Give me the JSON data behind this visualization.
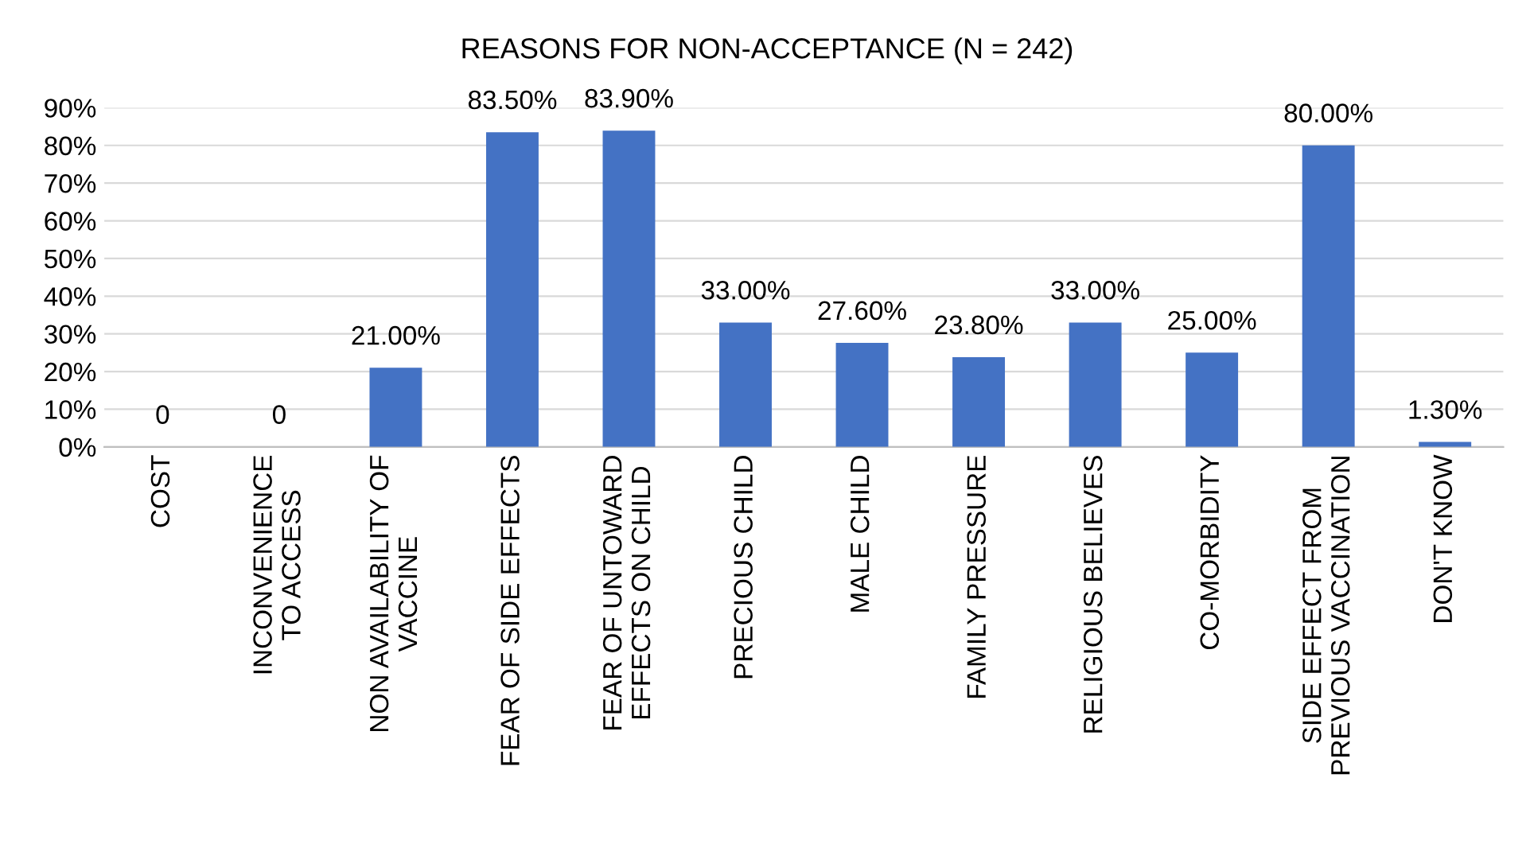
{
  "chart_data": {
    "type": "bar",
    "title": "REASONS FOR NON-ACCEPTANCE (N = 242)",
    "categories": [
      "COST",
      "INCONVENIENCE\nTO ACCESS",
      "NON AVAILABILITY OF\nVACCINE",
      "FEAR OF SIDE EFFECTS",
      "FEAR OF UNTOWARD\nEFFECTS ON CHILD",
      "PRECIOUS CHILD",
      "MALE CHILD",
      "FAMILY PRESSURE",
      "RELIGIOUS BELIEVES",
      "CO-MORBIDITY",
      "SIDE EFFECT FROM\nPREVIOUS VACCINATION",
      "DON'T KNOW"
    ],
    "values": [
      0,
      0,
      21.0,
      83.5,
      83.9,
      33.0,
      27.6,
      23.8,
      33.0,
      25.0,
      80.0,
      1.3
    ],
    "value_labels": [
      "0",
      "0",
      "21.00%",
      "83.50%",
      "83.90%",
      "33.00%",
      "27.60%",
      "23.80%",
      "33.00%",
      "25.00%",
      "80.00%",
      "1.30%"
    ],
    "color": "#4472c4",
    "ylim": [
      0,
      90
    ],
    "yticks": [
      {
        "value": 0,
        "label": "0%"
      },
      {
        "value": 10,
        "label": "10%"
      },
      {
        "value": 20,
        "label": "20%"
      },
      {
        "value": 30,
        "label": "30%"
      },
      {
        "value": 40,
        "label": "40%"
      },
      {
        "value": 50,
        "label": "50%"
      },
      {
        "value": 60,
        "label": "60%"
      },
      {
        "value": 70,
        "label": "70%"
      },
      {
        "value": 80,
        "label": "80%"
      },
      {
        "value": 90,
        "label": "90%"
      }
    ],
    "grid": "y"
  }
}
